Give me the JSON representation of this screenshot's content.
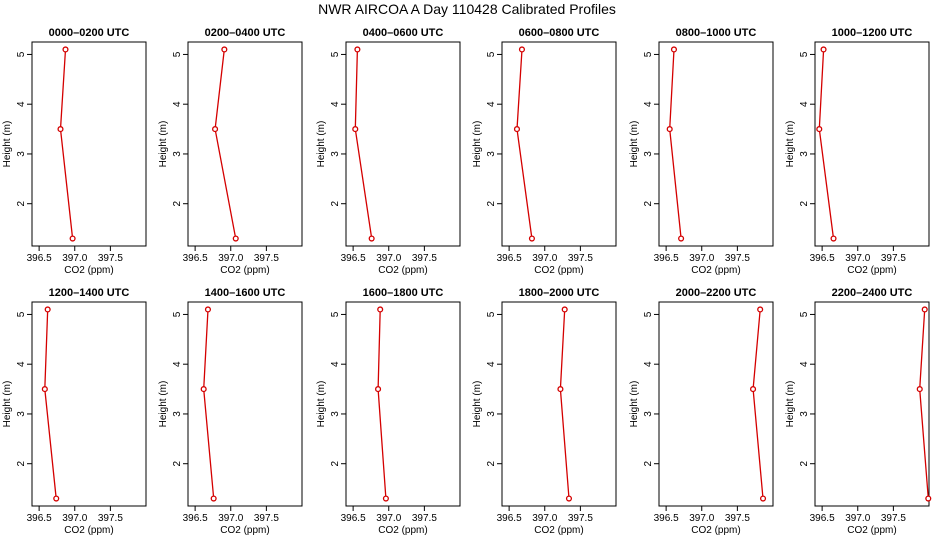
{
  "figure_title": "NWR AIRCOA A  Day 110428  Calibrated Profiles",
  "chart_data": [
    {
      "type": "line",
      "title": "0000–0200 UTC",
      "xlabel": "CO2 (ppm)",
      "ylabel": "Height (m)",
      "xticks": [
        396.5,
        397.0,
        397.5
      ],
      "xtick_labels": [
        "396.5",
        "397.0",
        "397.5"
      ],
      "yticks": [
        2,
        3,
        4,
        5
      ],
      "ytick_labels": [
        "2",
        "3",
        "4",
        "5"
      ],
      "xlim": [
        396.4,
        398.0
      ],
      "ylim": [
        1.15,
        5.25
      ],
      "x": [
        396.87,
        396.8,
        396.97
      ],
      "y": [
        5.1,
        3.5,
        1.3
      ],
      "color": "#d40000"
    },
    {
      "type": "line",
      "title": "0200–0400 UTC",
      "xlabel": "CO2 (ppm)",
      "ylabel": "Height (m)",
      "xticks": [
        396.5,
        397.0,
        397.5
      ],
      "xtick_labels": [
        "396.5",
        "397.0",
        "397.5"
      ],
      "yticks": [
        2,
        3,
        4,
        5
      ],
      "ytick_labels": [
        "2",
        "3",
        "4",
        "5"
      ],
      "xlim": [
        396.4,
        398.0
      ],
      "ylim": [
        1.15,
        5.25
      ],
      "x": [
        396.91,
        396.78,
        397.07
      ],
      "y": [
        5.1,
        3.5,
        1.3
      ],
      "color": "#d40000"
    },
    {
      "type": "line",
      "title": "0400–0600 UTC",
      "xlabel": "CO2 (ppm)",
      "ylabel": "Height (m)",
      "xticks": [
        396.5,
        397.0,
        397.5
      ],
      "xtick_labels": [
        "396.5",
        "397.0",
        "397.5"
      ],
      "yticks": [
        2,
        3,
        4,
        5
      ],
      "ytick_labels": [
        "2",
        "3",
        "4",
        "5"
      ],
      "xlim": [
        396.4,
        398.0
      ],
      "ylim": [
        1.15,
        5.25
      ],
      "x": [
        396.56,
        396.53,
        396.76
      ],
      "y": [
        5.1,
        3.5,
        1.3
      ],
      "color": "#d40000"
    },
    {
      "type": "line",
      "title": "0600–0800 UTC",
      "xlabel": "CO2 (ppm)",
      "ylabel": "Height (m)",
      "xticks": [
        396.5,
        397.0,
        397.5
      ],
      "xtick_labels": [
        "396.5",
        "397.0",
        "397.5"
      ],
      "yticks": [
        2,
        3,
        4,
        5
      ],
      "ytick_labels": [
        "2",
        "3",
        "4",
        "5"
      ],
      "xlim": [
        396.4,
        398.0
      ],
      "ylim": [
        1.15,
        5.25
      ],
      "x": [
        396.68,
        396.61,
        396.82
      ],
      "y": [
        5.1,
        3.5,
        1.3
      ],
      "color": "#d40000"
    },
    {
      "type": "line",
      "title": "0800–1000 UTC",
      "xlabel": "CO2 (ppm)",
      "ylabel": "Height (m)",
      "xticks": [
        396.5,
        397.0,
        397.5
      ],
      "xtick_labels": [
        "396.5",
        "397.0",
        "397.5"
      ],
      "yticks": [
        2,
        3,
        4,
        5
      ],
      "ytick_labels": [
        "2",
        "3",
        "4",
        "5"
      ],
      "xlim": [
        396.4,
        398.0
      ],
      "ylim": [
        1.15,
        5.25
      ],
      "x": [
        396.61,
        396.55,
        396.71
      ],
      "y": [
        5.1,
        3.5,
        1.3
      ],
      "color": "#d40000"
    },
    {
      "type": "line",
      "title": "1000–1200 UTC",
      "xlabel": "CO2 (ppm)",
      "ylabel": "Height (m)",
      "xticks": [
        396.5,
        397.0,
        397.5
      ],
      "xtick_labels": [
        "396.5",
        "397.0",
        "397.5"
      ],
      "yticks": [
        2,
        3,
        4,
        5
      ],
      "ytick_labels": [
        "2",
        "3",
        "4",
        "5"
      ],
      "xlim": [
        396.4,
        398.0
      ],
      "ylim": [
        1.15,
        5.25
      ],
      "x": [
        396.52,
        396.46,
        396.66
      ],
      "y": [
        5.1,
        3.5,
        1.3
      ],
      "color": "#d40000"
    },
    {
      "type": "line",
      "title": "1200–1400 UTC",
      "xlabel": "CO2 (ppm)",
      "ylabel": "Height (m)",
      "xticks": [
        396.5,
        397.0,
        397.5
      ],
      "xtick_labels": [
        "396.5",
        "397.0",
        "397.5"
      ],
      "yticks": [
        2,
        3,
        4,
        5
      ],
      "ytick_labels": [
        "2",
        "3",
        "4",
        "5"
      ],
      "xlim": [
        396.4,
        398.0
      ],
      "ylim": [
        1.15,
        5.25
      ],
      "x": [
        396.62,
        396.58,
        396.74
      ],
      "y": [
        5.1,
        3.5,
        1.3
      ],
      "color": "#d40000"
    },
    {
      "type": "line",
      "title": "1400–1600 UTC",
      "xlabel": "CO2 (ppm)",
      "ylabel": "Height (m)",
      "xticks": [
        396.5,
        397.0,
        397.5
      ],
      "xtick_labels": [
        "396.5",
        "397.0",
        "397.5"
      ],
      "yticks": [
        2,
        3,
        4,
        5
      ],
      "ytick_labels": [
        "2",
        "3",
        "4",
        "5"
      ],
      "xlim": [
        396.4,
        398.0
      ],
      "ylim": [
        1.15,
        5.25
      ],
      "x": [
        396.68,
        396.62,
        396.76
      ],
      "y": [
        5.1,
        3.5,
        1.3
      ],
      "color": "#d40000"
    },
    {
      "type": "line",
      "title": "1600–1800 UTC",
      "xlabel": "CO2 (ppm)",
      "ylabel": "Height (m)",
      "xticks": [
        396.5,
        397.0,
        397.5
      ],
      "xtick_labels": [
        "396.5",
        "397.0",
        "397.5"
      ],
      "yticks": [
        2,
        3,
        4,
        5
      ],
      "ytick_labels": [
        "2",
        "3",
        "4",
        "5"
      ],
      "xlim": [
        396.4,
        398.0
      ],
      "ylim": [
        1.15,
        5.25
      ],
      "x": [
        396.88,
        396.85,
        396.96
      ],
      "y": [
        5.1,
        3.5,
        1.3
      ],
      "color": "#d40000"
    },
    {
      "type": "line",
      "title": "1800–2000 UTC",
      "xlabel": "CO2 (ppm)",
      "ylabel": "Height (m)",
      "xticks": [
        396.5,
        397.0,
        397.5
      ],
      "xtick_labels": [
        "396.5",
        "397.0",
        "397.5"
      ],
      "yticks": [
        2,
        3,
        4,
        5
      ],
      "ytick_labels": [
        "2",
        "3",
        "4",
        "5"
      ],
      "xlim": [
        396.4,
        398.0
      ],
      "ylim": [
        1.15,
        5.25
      ],
      "x": [
        397.28,
        397.22,
        397.34
      ],
      "y": [
        5.1,
        3.5,
        1.3
      ],
      "color": "#d40000"
    },
    {
      "type": "line",
      "title": "2000–2200 UTC",
      "xlabel": "CO2 (ppm)",
      "ylabel": "Height (m)",
      "xticks": [
        396.5,
        397.0,
        397.5
      ],
      "xtick_labels": [
        "396.5",
        "397.0",
        "397.5"
      ],
      "yticks": [
        2,
        3,
        4,
        5
      ],
      "ytick_labels": [
        "2",
        "3",
        "4",
        "5"
      ],
      "xlim": [
        396.4,
        398.0
      ],
      "ylim": [
        1.15,
        5.25
      ],
      "x": [
        397.82,
        397.72,
        397.86
      ],
      "y": [
        5.1,
        3.5,
        1.3
      ],
      "color": "#d40000"
    },
    {
      "type": "line",
      "title": "2200–2400 UTC",
      "xlabel": "CO2 (ppm)",
      "ylabel": "Height (m)",
      "xticks": [
        396.5,
        397.0,
        397.5
      ],
      "xtick_labels": [
        "396.5",
        "397.0",
        "397.5"
      ],
      "yticks": [
        2,
        3,
        4,
        5
      ],
      "ytick_labels": [
        "2",
        "3",
        "4",
        "5"
      ],
      "xlim": [
        396.4,
        398.0
      ],
      "ylim": [
        1.15,
        5.25
      ],
      "x": [
        397.94,
        397.87,
        397.99
      ],
      "y": [
        5.1,
        3.5,
        1.3
      ],
      "color": "#d40000"
    }
  ]
}
